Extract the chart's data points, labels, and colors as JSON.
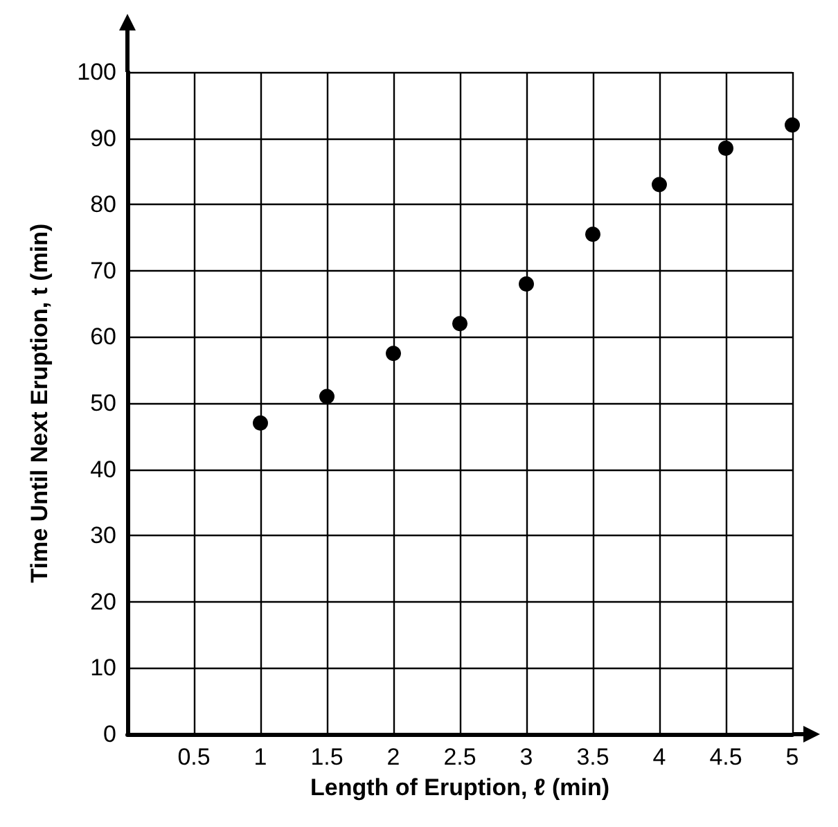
{
  "chart_data": {
    "type": "scatter",
    "xlabel": "Length of Eruption, ℓ (min)",
    "ylabel": "Time Until Next Eruption, t (min)",
    "x": [
      1,
      1.5,
      2,
      2.5,
      3,
      3.5,
      4,
      4.5,
      5
    ],
    "series": [
      {
        "color": "#000000",
        "values": [
          47,
          51,
          57.5,
          62,
          68,
          75.5,
          83,
          88.5,
          92
        ]
      }
    ],
    "xlim": [
      0,
      5
    ],
    "ylim": [
      0,
      100
    ],
    "xticks": [
      0.5,
      1,
      1.5,
      2,
      2.5,
      3,
      3.5,
      4,
      4.5,
      5
    ],
    "yticks": [
      0,
      10,
      20,
      30,
      40,
      50,
      60,
      70,
      80,
      90,
      100
    ],
    "grid": true,
    "marker": "circle"
  }
}
